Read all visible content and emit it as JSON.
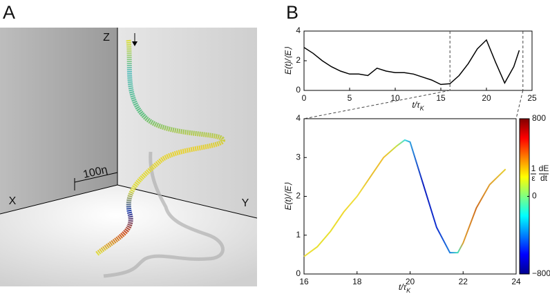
{
  "panel_labels": [
    "A",
    "B"
  ],
  "panel_a": {
    "axis_labels": {
      "x": "X",
      "y": "Y",
      "z": "Z"
    },
    "scale_label": "100η"
  },
  "chart_data": [
    {
      "type": "line",
      "x": [
        0,
        1,
        2,
        3,
        4,
        5,
        6,
        7,
        8,
        9,
        10,
        11,
        12,
        13,
        14,
        15,
        16,
        17,
        18,
        19,
        20,
        21,
        22,
        23,
        23.6
      ],
      "series": [
        {
          "color": "#000000",
          "values": [
            2.9,
            2.5,
            2.0,
            1.6,
            1.3,
            1.1,
            1.1,
            1.0,
            1.5,
            1.3,
            1.2,
            1.2,
            1.1,
            0.9,
            0.7,
            0.4,
            0.45,
            1.0,
            1.8,
            2.8,
            3.4,
            1.9,
            0.5,
            1.6,
            2.7
          ]
        }
      ],
      "xlim": [
        0,
        25
      ],
      "ylim": [
        0,
        4
      ],
      "xticks": [
        0,
        5,
        10,
        15,
        20,
        25
      ],
      "yticks": [
        0,
        2,
        4
      ],
      "highlight_x": [
        16,
        24
      ],
      "xlabel": {
        "text": "t/τ",
        "subscript": "K"
      },
      "ylabel": "E(t)/⟨E⟩"
    },
    {
      "type": "colored-line",
      "x": [
        16,
        16.5,
        17,
        17.5,
        18,
        18.5,
        19,
        19.5,
        19.8,
        20,
        20.5,
        21,
        21.5,
        21.8,
        22,
        22.5,
        23,
        23.6
      ],
      "series": [
        {
          "values": [
            0.45,
            0.7,
            1.1,
            1.6,
            2.0,
            2.5,
            3.0,
            3.3,
            3.45,
            3.4,
            2.3,
            1.2,
            0.55,
            0.55,
            0.8,
            1.7,
            2.3,
            2.7
          ],
          "colors": [
            "#f0e040",
            "#e8e030",
            "#e8e030",
            "#f0d830",
            "#f0e040",
            "#e8c030",
            "#f0c030",
            "#c8e040",
            "#40e0e0",
            "#30a0e0",
            "#1020c0",
            "#1030d0",
            "#2080e0",
            "#40e0c0",
            "#e0a030",
            "#d07020",
            "#e0a030",
            "#e8d030"
          ]
        }
      ],
      "xlim": [
        16,
        24
      ],
      "ylim": [
        0,
        4
      ],
      "xticks": [
        16,
        18,
        20,
        22,
        24
      ],
      "yticks": [
        0,
        1,
        2,
        3,
        4
      ],
      "xlabel": {
        "text": "t/τ",
        "subscript": "K"
      },
      "ylabel": "E(t)/⟨E⟩",
      "colorbar": {
        "colormap": "jet",
        "clim": [
          -800,
          800
        ],
        "ticks": [
          800,
          0,
          {
            "value": -800,
            "label": "−800"
          }
        ],
        "label": {
          "left_numerator": "1",
          "left_denominator": "ε",
          "right_numerator": "dE",
          "right_denominator": "dt"
        }
      }
    }
  ]
}
